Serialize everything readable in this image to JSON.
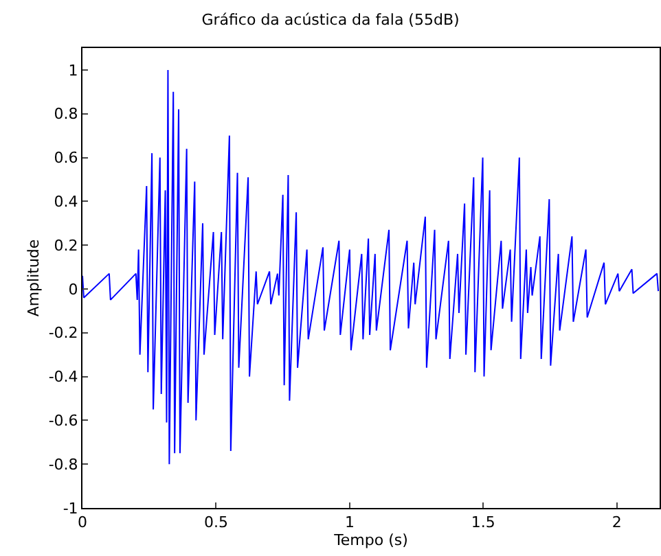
{
  "chart_data": {
    "type": "line",
    "title": "Gráfico da acústica da fala (55dB)",
    "xlabel": "Tempo (s)",
    "ylabel": "Amplitude",
    "x": [
      0,
      0.005,
      0.1,
      0.105,
      0.2,
      0.205,
      0.21,
      0.215,
      0.24,
      0.245,
      0.26,
      0.265,
      0.29,
      0.295,
      0.31,
      0.315,
      0.32,
      0.325,
      0.34,
      0.345,
      0.36,
      0.365,
      0.39,
      0.395,
      0.42,
      0.425,
      0.45,
      0.455,
      0.49,
      0.495,
      0.52,
      0.525,
      0.55,
      0.555,
      0.58,
      0.585,
      0.62,
      0.625,
      0.65,
      0.655,
      0.7,
      0.705,
      0.73,
      0.735,
      0.75,
      0.755,
      0.77,
      0.775,
      0.8,
      0.805,
      0.84,
      0.845,
      0.9,
      0.905,
      0.96,
      0.965,
      1.0,
      1.005,
      1.045,
      1.05,
      1.07,
      1.075,
      1.095,
      1.1,
      1.147,
      1.152,
      1.215,
      1.22,
      1.24,
      1.245,
      1.283,
      1.288,
      1.318,
      1.323,
      1.37,
      1.375,
      1.404,
      1.409,
      1.43,
      1.435,
      1.464,
      1.469,
      1.498,
      1.503,
      1.524,
      1.529,
      1.567,
      1.572,
      1.601,
      1.606,
      1.635,
      1.64,
      1.661,
      1.666,
      1.678,
      1.683,
      1.712,
      1.717,
      1.747,
      1.752,
      1.781,
      1.786,
      1.832,
      1.837,
      1.884,
      1.889,
      1.952,
      1.957,
      2.004,
      2.009,
      2.056,
      2.061,
      2.15,
      2.155
    ],
    "series": [
      {
        "color": "#0000ff",
        "values": [
          0.06,
          -0.04,
          0.07,
          -0.05,
          0.07,
          -0.05,
          0.18,
          -0.3,
          0.47,
          -0.38,
          0.62,
          -0.55,
          0.6,
          -0.48,
          0.45,
          -0.61,
          1.0,
          -0.8,
          0.9,
          -0.75,
          0.82,
          -0.75,
          0.64,
          -0.52,
          0.49,
          -0.6,
          0.3,
          -0.3,
          0.26,
          -0.21,
          0.26,
          -0.23,
          0.7,
          -0.74,
          0.53,
          -0.36,
          0.51,
          -0.4,
          0.08,
          -0.07,
          0.08,
          -0.07,
          0.07,
          -0.03,
          0.43,
          -0.44,
          0.52,
          -0.51,
          0.35,
          -0.36,
          0.18,
          -0.23,
          0.19,
          -0.19,
          0.22,
          -0.21,
          0.18,
          -0.28,
          0.16,
          -0.23,
          0.23,
          -0.21,
          0.16,
          -0.19,
          0.27,
          -0.28,
          0.22,
          -0.18,
          0.12,
          -0.07,
          0.33,
          -0.36,
          0.27,
          -0.23,
          0.22,
          -0.32,
          0.16,
          -0.11,
          0.39,
          -0.3,
          0.51,
          -0.38,
          0.6,
          -0.4,
          0.45,
          -0.28,
          0.22,
          -0.09,
          0.18,
          -0.15,
          0.6,
          -0.32,
          0.18,
          -0.11,
          0.1,
          -0.03,
          0.24,
          -0.32,
          0.41,
          -0.35,
          0.16,
          -0.19,
          0.24,
          -0.15,
          0.18,
          -0.13,
          0.12,
          -0.07,
          0.07,
          -0.01,
          0.09,
          -0.02,
          0.07,
          -0.01
        ]
      }
    ],
    "xlim": [
      0,
      2.16
    ],
    "xticks": [
      0,
      0.5,
      1,
      1.5,
      2
    ],
    "ylim": [
      -1,
      1.1
    ],
    "yticks": [
      -1,
      -0.8,
      -0.6,
      -0.4,
      -0.2,
      0,
      0.2,
      0.4,
      0.6,
      0.8,
      1
    ],
    "marker": "none",
    "line_style": "solid"
  }
}
